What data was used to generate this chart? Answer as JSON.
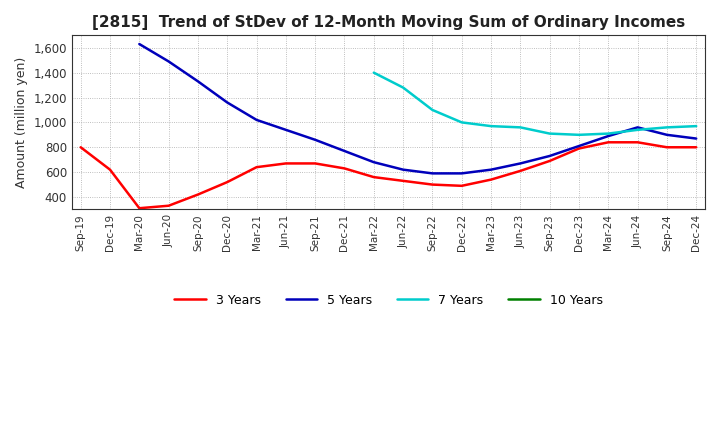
{
  "title": "[2815]  Trend of StDev of 12-Month Moving Sum of Ordinary Incomes",
  "ylabel": "Amount (million yen)",
  "ylim": [
    300,
    1700
  ],
  "yticks": [
    400,
    600,
    800,
    1000,
    1200,
    1400,
    1600
  ],
  "background_color": "#ffffff",
  "grid_color": "#aaaaaa",
  "x_labels": [
    "Sep-19",
    "Dec-19",
    "Mar-20",
    "Jun-20",
    "Sep-20",
    "Dec-20",
    "Mar-21",
    "Jun-21",
    "Sep-21",
    "Dec-21",
    "Mar-22",
    "Jun-22",
    "Sep-22",
    "Dec-22",
    "Mar-23",
    "Jun-23",
    "Sep-23",
    "Dec-23",
    "Mar-24",
    "Jun-24",
    "Sep-24",
    "Dec-24"
  ],
  "series": {
    "3 Years": {
      "color": "#ff0000",
      "data": [
        800,
        620,
        310,
        330,
        420,
        520,
        640,
        670,
        670,
        630,
        560,
        530,
        500,
        490,
        540,
        610,
        690,
        790,
        840,
        840,
        800,
        800
      ]
    },
    "5 Years": {
      "color": "#0000bb",
      "data": [
        null,
        null,
        1630,
        1490,
        1330,
        1160,
        1020,
        940,
        860,
        770,
        680,
        620,
        590,
        590,
        620,
        670,
        730,
        810,
        890,
        960,
        900,
        870
      ]
    },
    "7 Years": {
      "color": "#00cccc",
      "data": [
        null,
        null,
        null,
        null,
        null,
        null,
        null,
        null,
        null,
        null,
        1400,
        1280,
        1100,
        1000,
        970,
        960,
        910,
        900,
        910,
        940,
        960,
        970
      ]
    },
    "10 Years": {
      "color": "#008000",
      "data": [
        null,
        null,
        null,
        null,
        null,
        null,
        null,
        null,
        null,
        null,
        null,
        null,
        null,
        null,
        null,
        null,
        null,
        null,
        null,
        null,
        null,
        null
      ]
    }
  }
}
